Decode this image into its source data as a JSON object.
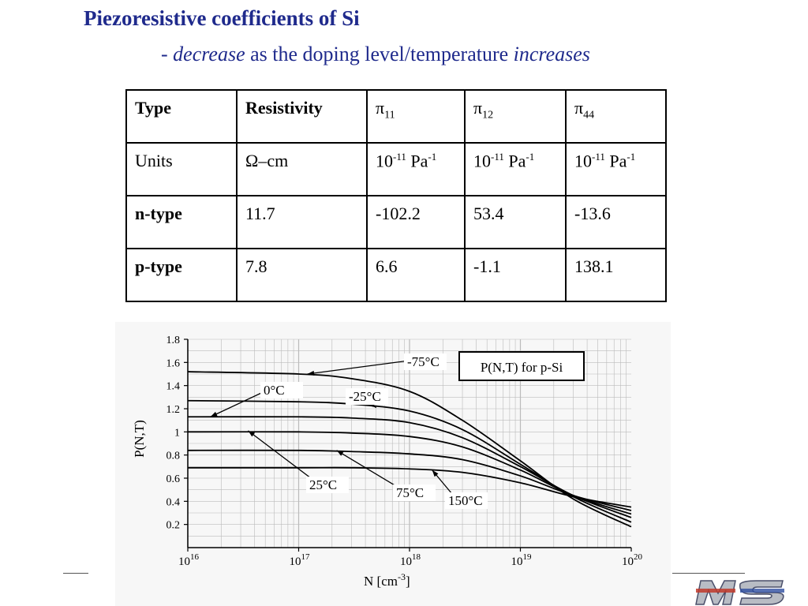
{
  "header": {
    "title": "Piezoresistive coefficients of Si",
    "sub_dash": "- ",
    "sub_word1": "decrease",
    "sub_mid": " as the doping level/temperature ",
    "sub_word2": "increases"
  },
  "table": {
    "headers": [
      "Type",
      "Resistivity",
      "π",
      "π",
      "π"
    ],
    "header_subs": [
      "",
      "",
      "11",
      "12",
      "44"
    ],
    "units_label": "Units",
    "units": [
      "Ω–cm",
      "10",
      "10",
      "10"
    ],
    "units_exp": [
      "",
      "-11",
      "-11",
      "-11"
    ],
    "units_tail": [
      "",
      " Pa",
      " Pa",
      " Pa"
    ],
    "units_tail_exp": [
      "",
      "-1",
      "-1",
      "-1"
    ],
    "rows": [
      {
        "type": "n-type",
        "values": [
          "11.7",
          "-102.2",
          "53.4",
          "-13.6"
        ]
      },
      {
        "type": "p-type",
        "values": [
          "7.8",
          "6.6",
          "-1.1",
          "138.1"
        ]
      }
    ]
  },
  "chart_data": {
    "type": "line",
    "title": "P(N,T) for p-Si",
    "xlabel": "N  [cm",
    "xlabel_exp": "-3",
    "xlabel_tail": "]",
    "ylabel": "P(N,T)",
    "x_scale": "log",
    "xlim": [
      1e+16,
      1e+20
    ],
    "ylim": [
      0,
      1.8
    ],
    "grid": true,
    "x_ticks": [
      {
        "value": 1e+16,
        "base": "10",
        "exp": "16"
      },
      {
        "value": 1e+17,
        "base": "10",
        "exp": "17"
      },
      {
        "value": 1e+18,
        "base": "10",
        "exp": "18"
      },
      {
        "value": 1e+19,
        "base": "10",
        "exp": "19"
      },
      {
        "value": 1e+20,
        "base": "10",
        "exp": "20"
      }
    ],
    "y_ticks": [
      0.2,
      0.4,
      0.6,
      0.8,
      1,
      1.2,
      1.4,
      1.6,
      1.8
    ],
    "x": [
      1e+16,
      1e+17,
      3e+17,
      1e+18,
      3e+18,
      1e+19,
      3e+19,
      1e+20
    ],
    "series": [
      {
        "name": "-75°C",
        "values": [
          1.52,
          1.5,
          1.46,
          1.35,
          1.1,
          0.75,
          0.42,
          0.18
        ]
      },
      {
        "name": "-25°C",
        "values": [
          1.27,
          1.26,
          1.24,
          1.18,
          1.02,
          0.72,
          0.44,
          0.22
        ]
      },
      {
        "name": "0°C",
        "values": [
          1.13,
          1.13,
          1.12,
          1.08,
          0.95,
          0.7,
          0.45,
          0.26
        ]
      },
      {
        "name": "25°C",
        "values": [
          1.0,
          1.0,
          0.99,
          0.96,
          0.87,
          0.67,
          0.45,
          0.29
        ]
      },
      {
        "name": "75°C",
        "values": [
          0.84,
          0.84,
          0.83,
          0.81,
          0.76,
          0.62,
          0.45,
          0.32
        ]
      },
      {
        "name": "150°C",
        "values": [
          0.69,
          0.69,
          0.69,
          0.68,
          0.65,
          0.56,
          0.44,
          0.35
        ]
      }
    ]
  },
  "colors": {
    "title": "#1f2a8c",
    "curve": "#000000",
    "grid": "#bbbbbb"
  }
}
